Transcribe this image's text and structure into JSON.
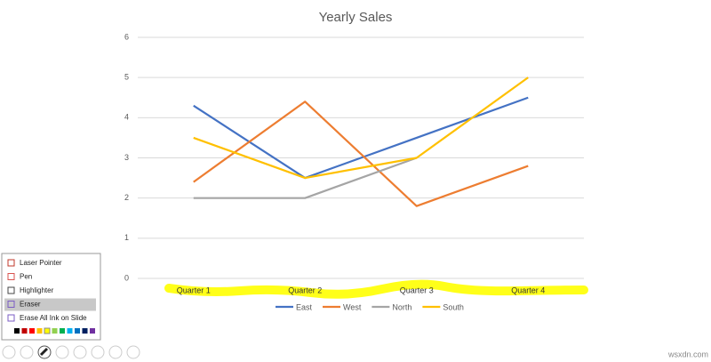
{
  "chart_data": {
    "type": "line",
    "title": "Yearly Sales",
    "categories": [
      "Quarter 1",
      "Quarter 2",
      "Quarter 3",
      "Quarter 4"
    ],
    "series": [
      {
        "name": "East",
        "color": "#4472c4",
        "values": [
          4.3,
          2.5,
          3.5,
          4.5
        ]
      },
      {
        "name": "West",
        "color": "#ed7d31",
        "values": [
          2.4,
          4.4,
          1.8,
          2.8
        ]
      },
      {
        "name": "North",
        "color": "#a5a5a5",
        "values": [
          2.0,
          2.0,
          3.0,
          null
        ]
      },
      {
        "name": "South",
        "color": "#ffc000",
        "values": [
          3.5,
          2.5,
          3.0,
          5.0
        ]
      }
    ],
    "ylim": [
      0,
      6
    ],
    "yticks": [
      0,
      1,
      2,
      3,
      4,
      5,
      6
    ],
    "grid": true,
    "legend": "bottom"
  },
  "menu": {
    "items": [
      "Laser Pointer",
      "Pen",
      "Highlighter",
      "Eraser",
      "Erase All Ink on Slide"
    ],
    "selected": 3
  },
  "watermark": "wsxdn.com"
}
